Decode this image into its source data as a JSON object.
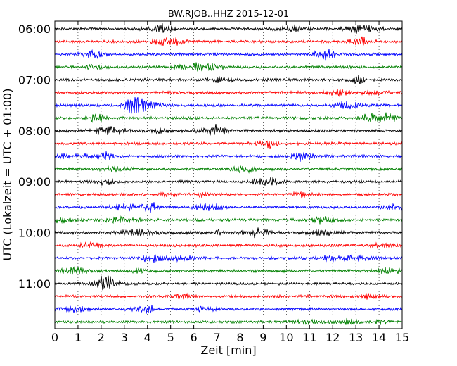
{
  "chart_data": {
    "type": "line",
    "title": "BW.RJOB..HHZ 2015-12-01",
    "xlabel": "Zeit  [min]",
    "ylabel": "UTC (Lokalzeit = UTC + 01:00)",
    "xlim": [
      0,
      15
    ],
    "x_ticks": [
      "0",
      "1",
      "2",
      "3",
      "4",
      "5",
      "6",
      "7",
      "8",
      "9",
      "10",
      "11",
      "12",
      "13",
      "14",
      "15"
    ],
    "y_tick_labels": [
      "06:00",
      "07:00",
      "08:00",
      "09:00",
      "10:00",
      "11:00"
    ],
    "trace_interval_min": 15,
    "first_trace_start": "06:00",
    "trace_count": 24,
    "trace_colors": [
      "#000000",
      "#ff0000",
      "#0000ff",
      "#008000"
    ],
    "grid": "vertical-dotted",
    "legend": "none"
  }
}
